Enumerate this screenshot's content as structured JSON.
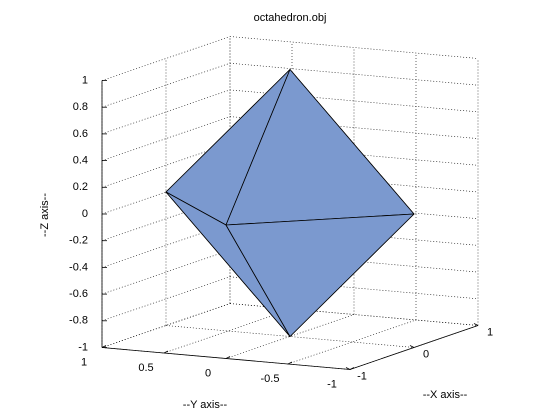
{
  "chart_data": {
    "type": "patch3d",
    "title": "octahedron.obj",
    "xlabel": "--X axis--",
    "ylabel": "--Y axis--",
    "zlabel": "--Z axis--",
    "x": [
      0,
      0,
      0,
      0,
      -1,
      1
    ],
    "y": [
      0,
      0,
      1,
      -1,
      0,
      0
    ],
    "z": [
      1,
      -1,
      0,
      0,
      0,
      0
    ],
    "color": "#7b99cf",
    "edge_color": "#000000",
    "xlim": [
      -1,
      1
    ],
    "ylim": [
      -1,
      1
    ],
    "zlim": [
      -1,
      1
    ],
    "xticks": [
      -1,
      0,
      1
    ],
    "yticks": [
      -1,
      -0.5,
      0,
      0.5,
      1
    ],
    "zticks": [
      -1,
      -0.8,
      -0.6,
      -0.4,
      -0.2,
      0,
      0.2,
      0.4,
      0.6,
      0.8,
      1
    ],
    "grid": true
  }
}
